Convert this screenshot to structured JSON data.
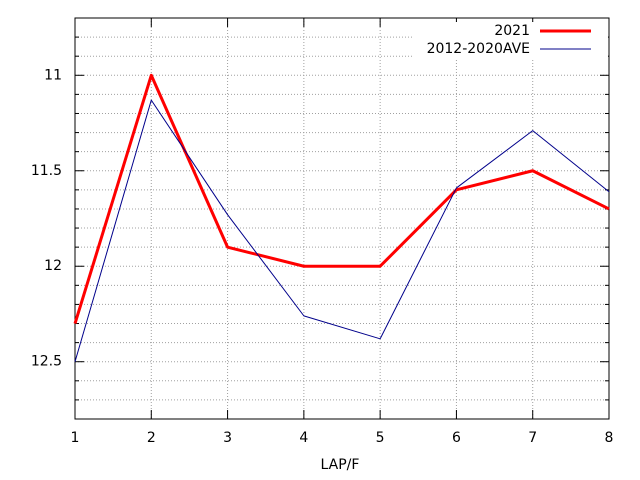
{
  "chart_data": {
    "type": "line",
    "xlabel": "LAP/F",
    "x": [
      1,
      2,
      3,
      4,
      5,
      6,
      7,
      8
    ],
    "series": [
      {
        "name": "2021",
        "color": "#ff0000",
        "values": [
          12.3,
          11.0,
          11.9,
          12.0,
          12.0,
          11.6,
          11.5,
          11.7
        ]
      },
      {
        "name": "2012-2020AVE",
        "color": "#00008b",
        "values": [
          12.5,
          11.13,
          11.73,
          12.26,
          12.38,
          11.59,
          11.29,
          11.61
        ]
      }
    ],
    "xlim": [
      1,
      8
    ],
    "xticks": [
      1,
      2,
      3,
      4,
      5,
      6,
      7,
      8
    ],
    "ylim": [
      10.7,
      12.8
    ],
    "yticks": [
      11,
      11.5,
      12,
      12.5
    ],
    "yminorticks": [
      10.8,
      10.9,
      11.1,
      11.2,
      11.3,
      11.4,
      11.6,
      11.7,
      11.8,
      11.9,
      12.1,
      12.2,
      12.3,
      12.4,
      12.6,
      12.7
    ],
    "y_reversed": true,
    "grid": true,
    "legend": "top-right"
  }
}
